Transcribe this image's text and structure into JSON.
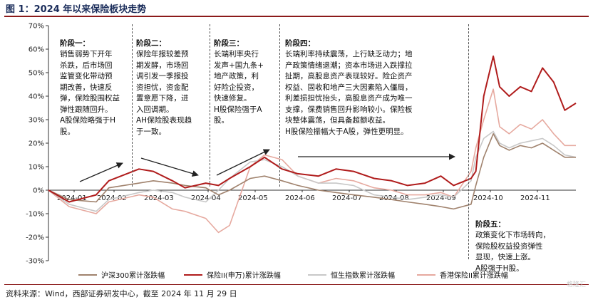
{
  "title": "图 1：2024 年以来保险板块走势",
  "source": "资料来源：Wind，西部证券研发中心，截至 2024 年 11 月 29 日",
  "watermark": "格隆汇",
  "annotations": {
    "stage1": {
      "head": "阶段一：",
      "body": "销售弱势下开年\n杀跌，后市场回\n监管变化带动预\n期改善，快速反\n弹，保险股围权益\n弹性跟随回升。\nA股保险略强于H\n股。"
    },
    "stage2": {
      "head": "阶段二：",
      "body": "保险年报较差预\n期发酵，市场回\n调引发一季报投\n资担忧，资金配\n置意愿下降，进\n入回调期。\nAH保险股表现趋\n于一致。"
    },
    "stage3": {
      "head": "阶段三：",
      "body": "长端利率央行\n发声+国九条+\n地产政策，利\n好险企投资，\n快速修复。\nH股保险强于A\n股。"
    },
    "stage4": {
      "head": "阶段四：",
      "body": "长端利率持续震荡，上行缺乏动力；地\n产政策情绪退潮；资本市场进入跌撑拉\n扯期，高股息资产表现较好。险企资产\n权益、固收和地产三大因素陷入僵局，\n利差损担忧抬头，高股息资产成为唯一\n支撑，保费销售回升影响较小。保险板\n块整体震荡，但具备超额收益。\nH股保险振幅大于A股，弹性更明显。"
    },
    "stage5": {
      "head": "阶段五：",
      "body": "政策变化下市场转向，\n保险股权益投资弹性\n显现，快速上涨。\nA股强于H股。"
    }
  },
  "chart_data": {
    "type": "line",
    "title": "2024 年以来保险板块走势",
    "ylim": [
      -30,
      70
    ],
    "yticks": [
      "70%",
      "60%",
      "50%",
      "40%",
      "30%",
      "20%",
      "10%",
      "0%",
      "-10%",
      "-20%",
      "-30%"
    ],
    "ytick_values": [
      70,
      60,
      50,
      40,
      30,
      20,
      10,
      0,
      -10,
      -20,
      -30
    ],
    "xlabels": [
      "2024-01",
      "2024-02",
      "2024-03",
      "2024-04",
      "2024-05",
      "2024-06",
      "2024-07",
      "2024-08",
      "2024-09",
      "2024-10",
      "2024-11"
    ],
    "x": [
      "2024-01-02",
      "2024-01-15",
      "2024-02-01",
      "2024-02-09",
      "2024-02-28",
      "2024-03-08",
      "2024-03-20",
      "2024-03-28",
      "2024-04-10",
      "2024-04-18",
      "2024-04-25",
      "2024-05-08",
      "2024-05-17",
      "2024-05-28",
      "2024-06-07",
      "2024-06-20",
      "2024-07-01",
      "2024-07-12",
      "2024-07-25",
      "2024-08-05",
      "2024-08-15",
      "2024-08-26",
      "2024-09-05",
      "2024-09-13",
      "2024-09-24",
      "2024-09-27",
      "2024-10-02",
      "2024-10-08",
      "2024-10-12",
      "2024-10-18",
      "2024-10-25",
      "2024-11-01",
      "2024-11-08",
      "2024-11-15",
      "2024-11-22",
      "2024-11-29"
    ],
    "series": [
      {
        "name": "沪深300累计涨跌幅",
        "color": "#a0826d",
        "values": [
          0,
          -4,
          -5,
          1,
          3,
          4,
          3,
          2,
          1,
          -2,
          0,
          5,
          6,
          4,
          2,
          0,
          -1,
          -2,
          -3,
          -4,
          -5,
          -6,
          -7,
          -8,
          -6,
          2,
          14,
          24,
          19,
          17,
          19,
          18,
          20,
          17,
          14,
          14
        ]
      },
      {
        "name": "保险II(申万)累计涨跌幅",
        "color": "#b01c1c",
        "values": [
          0,
          -5,
          -2,
          4,
          9,
          8,
          4,
          1,
          3,
          2,
          5,
          10,
          14,
          9,
          7,
          6,
          9,
          8,
          5,
          4,
          2,
          3,
          6,
          2,
          5,
          8,
          40,
          57,
          44,
          40,
          44,
          42,
          52,
          46,
          34,
          37
        ]
      },
      {
        "name": "恒生指数累计涨跌幅",
        "color": "#c8c8c8",
        "values": [
          0,
          -6,
          -9,
          -4,
          -1,
          0,
          -1,
          -3,
          -5,
          0,
          5,
          12,
          13,
          10,
          6,
          3,
          3,
          2,
          -2,
          -3,
          -4,
          -3,
          -2,
          -3,
          4,
          14,
          22,
          25,
          20,
          18,
          20,
          21,
          22,
          19,
          15,
          14
        ]
      },
      {
        "name": "香港保险II累计涨跌幅",
        "color": "#e6a99f",
        "values": [
          0,
          -7,
          -10,
          -5,
          -2,
          -3,
          -8,
          -9,
          -12,
          -18,
          -15,
          10,
          15,
          13,
          6,
          3,
          5,
          4,
          1,
          0,
          -2,
          -2,
          -1,
          -3,
          8,
          18,
          30,
          43,
          27,
          24,
          28,
          26,
          30,
          24,
          19,
          19
        ]
      }
    ]
  }
}
